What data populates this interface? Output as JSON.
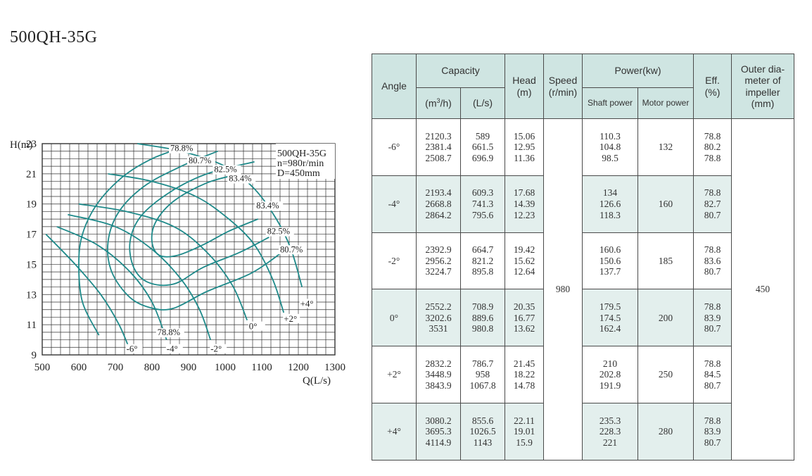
{
  "title": "500QH-35G",
  "chart_data": {
    "type": "line",
    "xlabel": "Q(L/s)",
    "ylabel": "H(m)",
    "xlim": [
      500,
      1300
    ],
    "ylim": [
      9,
      23
    ],
    "x_ticks": [
      "500",
      "600",
      "700",
      "800",
      "900",
      "1000",
      "1100",
      "1200",
      "1300"
    ],
    "y_ticks": [
      "9",
      "11",
      "13",
      "15",
      "17",
      "19",
      "21",
      "23"
    ],
    "grid": true,
    "legend_lines": [
      "500QH-35G",
      "n=980r/min",
      "D=450mm"
    ],
    "angle_curves": [
      {
        "name": "+4°",
        "points": [
          [
            760,
            23.0
          ],
          [
            880,
            22.5
          ],
          [
            1000,
            21.5
          ],
          [
            1080,
            20.0
          ],
          [
            1140,
            18.0
          ],
          [
            1180,
            16.0
          ],
          [
            1210,
            13.5
          ]
        ]
      },
      {
        "name": "+2°",
        "points": [
          [
            680,
            21.0
          ],
          [
            800,
            20.5
          ],
          [
            920,
            19.5
          ],
          [
            1010,
            18.0
          ],
          [
            1080,
            16.3
          ],
          [
            1130,
            14.0
          ],
          [
            1160,
            11.8
          ]
        ]
      },
      {
        "name": "0°",
        "points": [
          [
            600,
            19.0
          ],
          [
            730,
            18.5
          ],
          [
            860,
            17.5
          ],
          [
            950,
            15.8
          ],
          [
            1020,
            13.6
          ],
          [
            1060,
            11.3
          ]
        ]
      },
      {
        "name": "-2°",
        "points": [
          [
            570,
            18.3
          ],
          [
            700,
            17.5
          ],
          [
            800,
            16.0
          ],
          [
            880,
            14.0
          ],
          [
            930,
            12.0
          ],
          [
            960,
            10.0
          ]
        ]
      },
      {
        "name": "-4°",
        "points": [
          [
            540,
            17.5
          ],
          [
            650,
            16.3
          ],
          [
            740,
            14.5
          ],
          [
            800,
            12.5
          ],
          [
            840,
            10.0
          ]
        ]
      },
      {
        "name": "-6°",
        "points": [
          [
            510,
            17.0
          ],
          [
            590,
            15.0
          ],
          [
            660,
            13.0
          ],
          [
            710,
            11.0
          ],
          [
            740,
            9.3
          ]
        ]
      }
    ],
    "efficiency_curves": [
      {
        "name": "78.8%",
        "points": [
          [
            655,
            10.3
          ],
          [
            610,
            12.5
          ],
          [
            600,
            15.0
          ],
          [
            610,
            17.0
          ],
          [
            650,
            19.0
          ],
          [
            720,
            20.8
          ],
          [
            800,
            22.0
          ],
          [
            890,
            22.8
          ]
        ]
      },
      {
        "name": "80.7%",
        "points": [
          [
            1150,
            15.7
          ],
          [
            1070,
            14.4
          ],
          [
            950,
            13.2
          ],
          [
            860,
            12.1
          ],
          [
            800,
            12.1
          ],
          [
            740,
            12.8
          ],
          [
            690,
            14.5
          ],
          [
            680,
            16.5
          ],
          [
            710,
            18.5
          ],
          [
            780,
            20.2
          ],
          [
            880,
            21.5
          ],
          [
            980,
            22.5
          ]
        ]
      },
      {
        "name": "82.5%",
        "points": [
          [
            1120,
            16.8
          ],
          [
            1040,
            15.8
          ],
          [
            940,
            14.8
          ],
          [
            860,
            13.7
          ],
          [
            790,
            13.8
          ],
          [
            750,
            14.8
          ],
          [
            740,
            16.5
          ],
          [
            770,
            18.2
          ],
          [
            850,
            19.8
          ],
          [
            950,
            21.0
          ],
          [
            1080,
            21.8
          ]
        ]
      },
      {
        "name": "83.4%",
        "points": [
          [
            1090,
            18.0
          ],
          [
            1010,
            17.2
          ],
          [
            940,
            16.3
          ],
          [
            870,
            15.6
          ],
          [
            820,
            15.6
          ],
          [
            800,
            16.5
          ],
          [
            810,
            17.8
          ],
          [
            860,
            19.2
          ],
          [
            950,
            20.4
          ],
          [
            1040,
            21.0
          ]
        ]
      }
    ],
    "efficiency_labels": [
      "78.8%",
      "80.7%",
      "82.5%",
      "83.4%",
      "83.4%",
      "82.5%",
      "80.7%",
      "78.8%"
    ],
    "angle_labels": [
      "-6°",
      "-4°",
      "-2°",
      "0°",
      "+2°",
      "+4°"
    ]
  },
  "table": {
    "headers": {
      "angle": "Angle",
      "capacity": "Capacity",
      "capacity_m3h_base": "(m",
      "capacity_m3h_sup": "3",
      "capacity_m3h_tail": "/h)",
      "capacity_ls": "(L/s)",
      "head": "Head",
      "head_unit": "(m)",
      "speed": "Speed",
      "speed_unit": "(r/min)",
      "power": "Power(kw)",
      "shaft_power": "Shaft power",
      "motor_power": "Motor power",
      "eff": "Eff.",
      "eff_unit": "(%)",
      "outer_1": "Outer dia-",
      "outer_2": "meter of",
      "outer_3": "impeller",
      "outer_4": "(mm)"
    },
    "speed": "980",
    "outer_diameter": "450",
    "rows": [
      {
        "angle": "-6°",
        "capacity_m3h": [
          "2120.3",
          "2381.4",
          "2508.7"
        ],
        "capacity_ls": [
          "589",
          "661.5",
          "696.9"
        ],
        "head": [
          "15.06",
          "12.95",
          "11.36"
        ],
        "shaft_power": [
          "110.3",
          "104.8",
          "98.5"
        ],
        "motor_power": "132",
        "eff": [
          "78.8",
          "80.2",
          "78.8"
        ]
      },
      {
        "angle": "-4°",
        "capacity_m3h": [
          "2193.4",
          "2668.8",
          "2864.2"
        ],
        "capacity_ls": [
          "609.3",
          "741.3",
          "795.6"
        ],
        "head": [
          "17.68",
          "14.39",
          "12.23"
        ],
        "shaft_power": [
          "134",
          "126.6",
          "118.3"
        ],
        "motor_power": "160",
        "eff": [
          "78.8",
          "82.7",
          "80.7"
        ]
      },
      {
        "angle": "-2°",
        "capacity_m3h": [
          "2392.9",
          "2956.2",
          "3224.7"
        ],
        "capacity_ls": [
          "664.7",
          "821.2",
          "895.8"
        ],
        "head": [
          "19.42",
          "15.62",
          "12.64"
        ],
        "shaft_power": [
          "160.6",
          "150.6",
          "137.7"
        ],
        "motor_power": "185",
        "eff": [
          "78.8",
          "83.6",
          "80.7"
        ]
      },
      {
        "angle": "0°",
        "capacity_m3h": [
          "2552.2",
          "3202.6",
          "3531"
        ],
        "capacity_ls": [
          "708.9",
          "889.6",
          "980.8"
        ],
        "head": [
          "20.35",
          "16.77",
          "13.62"
        ],
        "shaft_power": [
          "179.5",
          "174.5",
          "162.4"
        ],
        "motor_power": "200",
        "eff": [
          "78.8",
          "83.9",
          "80.7"
        ]
      },
      {
        "angle": "+2°",
        "capacity_m3h": [
          "2832.2",
          "3448.9",
          "3843.9"
        ],
        "capacity_ls": [
          "786.7",
          "958",
          "1067.8"
        ],
        "head": [
          "21.45",
          "18.22",
          "14.78"
        ],
        "shaft_power": [
          "210",
          "202.8",
          "191.9"
        ],
        "motor_power": "250",
        "eff": [
          "78.8",
          "84.5",
          "80.7"
        ]
      },
      {
        "angle": "+4°",
        "capacity_m3h": [
          "3080.2",
          "3695.3",
          "4114.9"
        ],
        "capacity_ls": [
          "855.6",
          "1026.5",
          "1143"
        ],
        "head": [
          "22.11",
          "19.01",
          "15.9"
        ],
        "shaft_power": [
          "235.3",
          "228.3",
          "221"
        ],
        "motor_power": "280",
        "eff": [
          "78.8",
          "83.9",
          "80.7"
        ]
      }
    ]
  },
  "colors": {
    "curve": "#1f8a8a",
    "grid": "#333333",
    "header_bg": "#cfe5e2",
    "row_shade": "#e3efed"
  }
}
